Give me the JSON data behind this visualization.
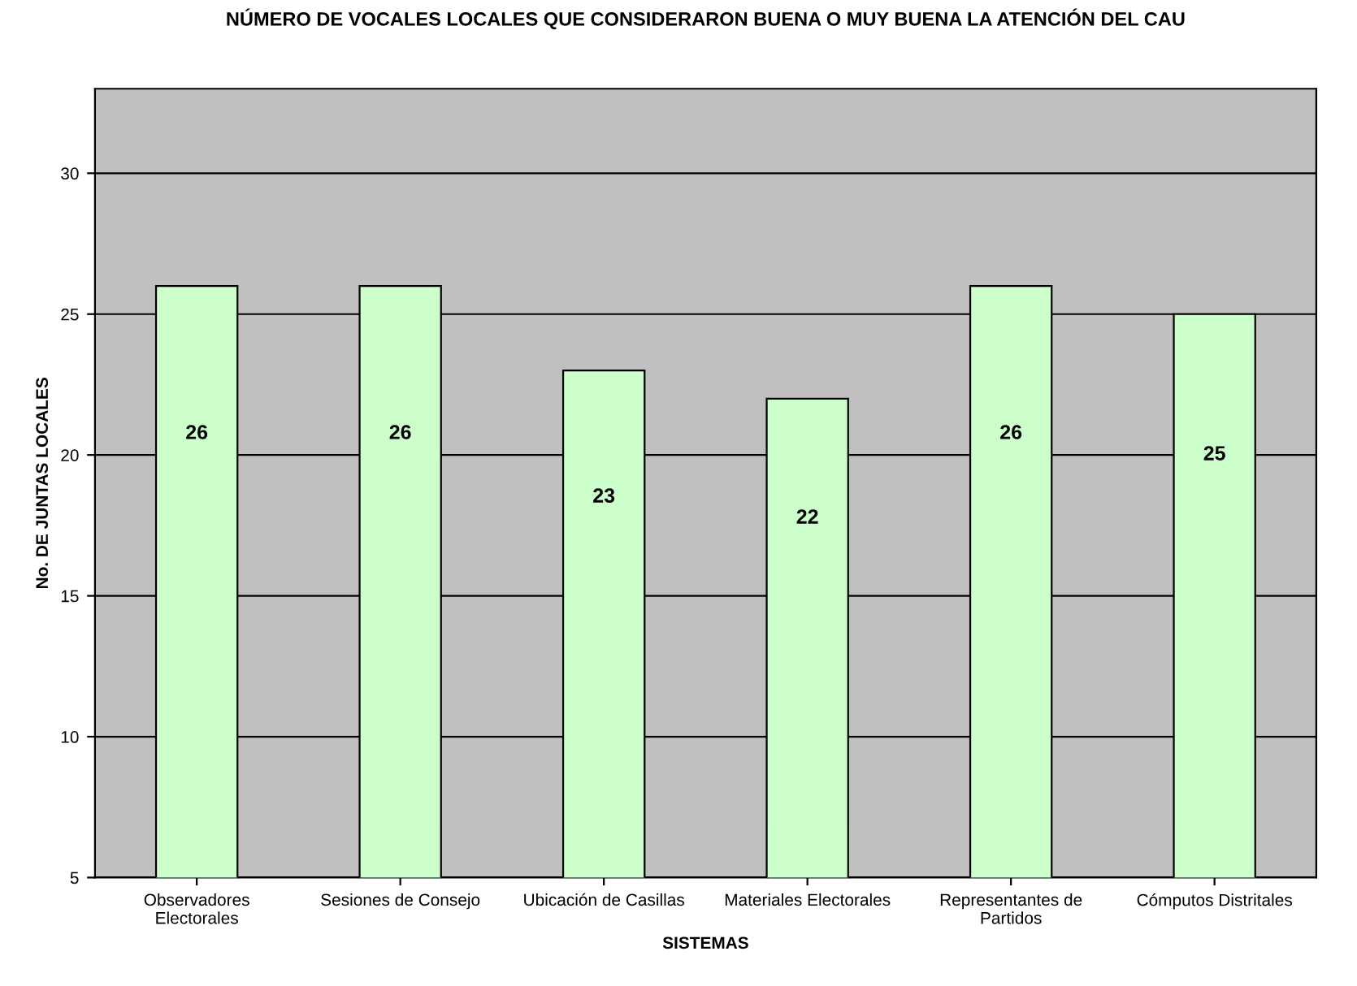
{
  "chart_data": {
    "type": "bar",
    "title": "NÚMERO DE VOCALES LOCALES QUE CONSIDERARON BUENA O MUY BUENA LA ATENCIÓN DEL CAU",
    "xlabel": "SISTEMAS",
    "ylabel": "No. DE JUNTAS LOCALES",
    "categories": [
      "Observadores\nElectorales",
      "Sesiones de Consejo",
      "Ubicación de Casillas",
      "Materiales Electorales",
      "Representantes de\nPartidos",
      "Cómputos Distritales"
    ],
    "values": [
      26,
      26,
      23,
      22,
      26,
      25
    ],
    "color": "#ccffcc",
    "ylim": [
      5,
      33
    ],
    "yticks": [
      5,
      10,
      15,
      20,
      25,
      30
    ],
    "grid": "y",
    "data_labels": true
  }
}
